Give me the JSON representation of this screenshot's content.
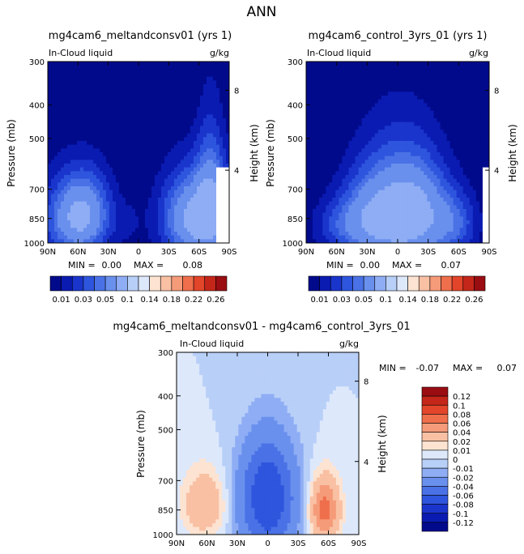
{
  "page_title": "ANN",
  "colors": {
    "abs_levels": [
      "#020a8c",
      "#0a1bb2",
      "#1a35cc",
      "#2e55dd",
      "#4a72e6",
      "#6a90ee",
      "#8eadf4",
      "#b8cff8",
      "#dde8fb",
      "#fde3d1",
      "#f9c0a3",
      "#f59b79",
      "#ef6e4b",
      "#e3452a",
      "#c4261a",
      "#9a0d12"
    ],
    "diff_levels": [
      "#020a8c",
      "#0a1bb2",
      "#1a35cc",
      "#2e55dd",
      "#4a72e6",
      "#6a90ee",
      "#8eadf4",
      "#b8cff8",
      "#dde8fb",
      "#fde3d1",
      "#f9c0a3",
      "#f59b79",
      "#ef6e4b",
      "#e3452a",
      "#c4261a",
      "#9a0d12"
    ]
  },
  "chart_data": [
    {
      "id": "p1",
      "type": "heatmap",
      "title": "mg4cam6_meltandconsv01 (yrs 1)",
      "left_label": "In-Cloud liquid",
      "right_label": "g/kg",
      "ylabel": "Pressure (mb)",
      "y2label": "Height (km)",
      "xticks": [
        "90N",
        "60N",
        "30N",
        "0",
        "30S",
        "60S",
        "90S"
      ],
      "yticks": [
        "300",
        "400",
        "500",
        "700",
        "850",
        "1000"
      ],
      "y2ticks": [
        "8",
        "4"
      ],
      "min_label": "MIN =",
      "min_value": "0.00",
      "max_label": "MAX =",
      "max_value": "0.08",
      "xlim": [
        90,
        -90
      ],
      "ylim": [
        1000,
        300
      ],
      "colorbar_labels": [
        "0.01",
        "0.03",
        "0.05",
        "0.1",
        "0.14",
        "0.18",
        "0.22",
        "0.26"
      ],
      "blobs": [
        {
          "lat": 62,
          "p": 850,
          "wlat": 32,
          "wp": 230,
          "amp": 0.065
        },
        {
          "lat": 50,
          "p": 790,
          "wlat": 22,
          "wp": 200,
          "amp": 0.02
        },
        {
          "lat": -58,
          "p": 850,
          "wlat": 34,
          "wp": 250,
          "amp": 0.08
        },
        {
          "lat": -72,
          "p": 700,
          "wlat": 14,
          "wp": 320,
          "amp": 0.035
        },
        {
          "lat": 10,
          "p": 880,
          "wlat": 12,
          "wp": 120,
          "amp": 0.008
        }
      ],
      "mask": [
        {
          "lat": [
            -78,
            -90
          ],
          "p": [
            600,
            1000
          ]
        }
      ]
    },
    {
      "id": "p2",
      "type": "heatmap",
      "title": "mg4cam6_control_3yrs_01 (yrs 1)",
      "left_label": "In-Cloud liquid",
      "right_label": "g/kg",
      "ylabel": "Pressure (mb)",
      "y2label": "Height (km)",
      "xticks": [
        "90N",
        "60N",
        "30N",
        "0",
        "30S",
        "60S",
        "90S"
      ],
      "yticks": [
        "300",
        "400",
        "500",
        "700",
        "850",
        "1000"
      ],
      "y2ticks": [
        "8",
        "4"
      ],
      "min_label": "MIN =",
      "min_value": "0.00",
      "max_label": "MAX =",
      "max_value": "0.07",
      "xlim": [
        90,
        -90
      ],
      "ylim": [
        1000,
        300
      ],
      "colorbar_labels": [
        "0.01",
        "0.03",
        "0.05",
        "0.1",
        "0.14",
        "0.18",
        "0.22",
        "0.26"
      ],
      "blobs": [
        {
          "lat": 0,
          "p": 830,
          "wlat": 42,
          "wp": 330,
          "amp": 0.07
        },
        {
          "lat": -25,
          "p": 820,
          "wlat": 28,
          "wp": 250,
          "amp": 0.03
        },
        {
          "lat": 30,
          "p": 850,
          "wlat": 28,
          "wp": 220,
          "amp": 0.03
        },
        {
          "lat": -58,
          "p": 880,
          "wlat": 22,
          "wp": 180,
          "amp": 0.03
        },
        {
          "lat": 60,
          "p": 890,
          "wlat": 25,
          "wp": 150,
          "amp": 0.022
        }
      ],
      "mask": [
        {
          "lat": [
            -84,
            -90
          ],
          "p": [
            600,
            1000
          ]
        }
      ]
    },
    {
      "id": "p3",
      "type": "heatmap",
      "title": "mg4cam6_meltandconsv01 - mg4cam6_control_3yrs_01",
      "left_label": "In-Cloud liquid",
      "right_label": "g/kg",
      "ylabel": "Pressure (mb)",
      "y2label": "Height (km)",
      "xticks": [
        "90N",
        "60N",
        "30N",
        "0",
        "30S",
        "60S",
        "90S"
      ],
      "yticks": [
        "300",
        "400",
        "500",
        "700",
        "850",
        "1000"
      ],
      "y2ticks": [
        "8",
        "4"
      ],
      "min_label": "MIN =",
      "min_value": "-0.07",
      "max_label": "MAX =",
      "max_value": "0.07",
      "xlim": [
        90,
        -90
      ],
      "ylim": [
        1000,
        300
      ],
      "colorbar_labels": [
        "0.12",
        "0.1",
        "0.08",
        "0.06",
        "0.04",
        "0.02",
        "0.01",
        "0",
        "-0.01",
        "-0.02",
        "-0.04",
        "-0.06",
        "-0.08",
        "-0.1",
        "-0.12"
      ],
      "blobs": [
        {
          "lat": 0,
          "p": 840,
          "wlat": 30,
          "wp": 300,
          "amp": -0.07
        },
        {
          "lat": 0,
          "p": 660,
          "wlat": 26,
          "wp": 180,
          "amp": -0.02
        },
        {
          "lat": -56,
          "p": 850,
          "wlat": 15,
          "wp": 180,
          "amp": 0.07
        },
        {
          "lat": 62,
          "p": 820,
          "wlat": 22,
          "wp": 180,
          "amp": 0.04
        }
      ],
      "mask": []
    }
  ]
}
